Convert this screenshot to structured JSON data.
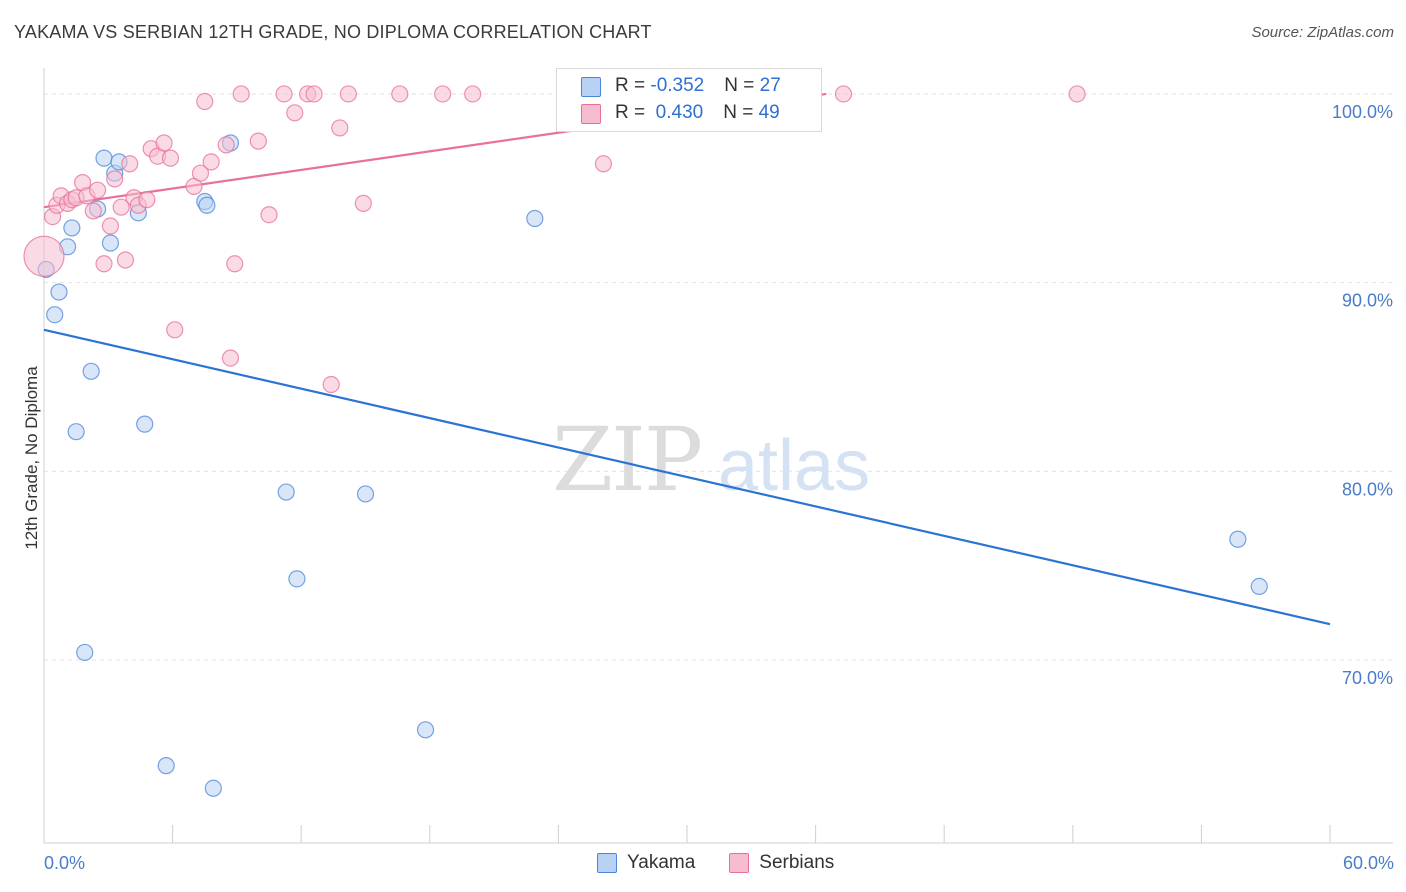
{
  "title": "YAKAMA VS SERBIAN 12TH GRADE, NO DIPLOMA CORRELATION CHART",
  "source": "Source: ZipAtlas.com",
  "watermark": {
    "zip": "ZIP",
    "atlas": "atlas"
  },
  "colors": {
    "yakama": "#4a86d8",
    "yakama_fill": "#b9d1f3",
    "serbians": "#e86f98",
    "serbians_fill": "#f6bdd0",
    "tick_text": "#4a7cc9"
  },
  "legend": {
    "yakama": {
      "r_label": "R = ",
      "r_value": "-0.352",
      "n_label": "N = ",
      "n_value": "27"
    },
    "serbians": {
      "r_label": "R = ",
      "r_value": " 0.430",
      "n_label": "N = ",
      "n_value": "49"
    }
  },
  "bottom_legend": {
    "yakama": "Yakama",
    "serbians": "Serbians"
  },
  "chart_data": {
    "type": "scatter",
    "xlabel": "",
    "ylabel": "12th Grade, No Diploma",
    "xlim": [
      0,
      60
    ],
    "ylim": [
      60.3,
      101.8
    ],
    "x_tick_labels": [
      {
        "value": 0,
        "label": "0.0%"
      },
      {
        "value": 60,
        "label": "60.0%"
      }
    ],
    "y_tick_labels": [
      {
        "value": 100,
        "label": "100.0%"
      },
      {
        "value": 90,
        "label": "90.0%"
      },
      {
        "value": 80,
        "label": "80.0%"
      },
      {
        "value": 70,
        "label": "70.0%"
      }
    ],
    "grid": true,
    "series": [
      {
        "name": "Yakama",
        "points": [
          [
            0.1,
            90.7
          ],
          [
            0.5,
            88.3
          ],
          [
            0.7,
            89.5
          ],
          [
            1.1,
            91.9
          ],
          [
            1.3,
            92.9
          ],
          [
            1.5,
            82.1
          ],
          [
            1.9,
            70.4
          ],
          [
            2.2,
            85.3
          ],
          [
            2.5,
            93.9
          ],
          [
            2.8,
            96.6
          ],
          [
            3.1,
            92.1
          ],
          [
            3.3,
            95.8
          ],
          [
            3.5,
            96.4
          ],
          [
            4.4,
            93.7
          ],
          [
            4.7,
            82.5
          ],
          [
            5.7,
            64.4
          ],
          [
            7.5,
            94.3
          ],
          [
            7.6,
            94.1
          ],
          [
            7.9,
            63.2
          ],
          [
            8.7,
            97.4
          ],
          [
            11.3,
            78.9
          ],
          [
            11.8,
            74.3
          ],
          [
            15.0,
            78.8
          ],
          [
            17.8,
            66.3
          ],
          [
            22.9,
            93.4
          ],
          [
            55.7,
            76.4
          ],
          [
            56.7,
            73.9
          ]
        ],
        "trend": {
          "x": [
            0,
            60
          ],
          "y": [
            87.5,
            71.9
          ]
        }
      },
      {
        "name": "Serbians",
        "points": [
          [
            0.0,
            91.4
          ],
          [
            0.4,
            93.5
          ],
          [
            0.6,
            94.1
          ],
          [
            0.8,
            94.6
          ],
          [
            1.1,
            94.2
          ],
          [
            1.3,
            94.4
          ],
          [
            1.5,
            94.5
          ],
          [
            1.8,
            95.3
          ],
          [
            2.0,
            94.6
          ],
          [
            2.3,
            93.8
          ],
          [
            2.5,
            94.9
          ],
          [
            2.8,
            91.0
          ],
          [
            3.1,
            93.0
          ],
          [
            3.3,
            95.5
          ],
          [
            3.6,
            94.0
          ],
          [
            3.8,
            91.2
          ],
          [
            4.0,
            96.3
          ],
          [
            4.2,
            94.5
          ],
          [
            4.4,
            94.1
          ],
          [
            4.8,
            94.4
          ],
          [
            5.0,
            97.1
          ],
          [
            5.3,
            96.7
          ],
          [
            5.6,
            97.4
          ],
          [
            5.9,
            96.6
          ],
          [
            6.1,
            87.5
          ],
          [
            7.0,
            95.1
          ],
          [
            7.3,
            95.8
          ],
          [
            7.5,
            99.6
          ],
          [
            7.8,
            96.4
          ],
          [
            8.5,
            97.3
          ],
          [
            8.7,
            86.0
          ],
          [
            8.9,
            91.0
          ],
          [
            9.2,
            100.0
          ],
          [
            10.0,
            97.5
          ],
          [
            10.5,
            93.6
          ],
          [
            11.2,
            100.0
          ],
          [
            11.7,
            99.0
          ],
          [
            12.3,
            100.0
          ],
          [
            12.6,
            100.0
          ],
          [
            13.4,
            84.6
          ],
          [
            13.8,
            98.2
          ],
          [
            14.2,
            100.0
          ],
          [
            14.9,
            94.2
          ],
          [
            16.6,
            100.0
          ],
          [
            18.6,
            100.0
          ],
          [
            20.0,
            100.0
          ],
          [
            26.1,
            96.3
          ],
          [
            37.3,
            100.0
          ],
          [
            48.2,
            100.0
          ]
        ],
        "trend": {
          "x": [
            0,
            36.5
          ],
          "y": [
            94.0,
            100.0
          ]
        }
      }
    ]
  }
}
